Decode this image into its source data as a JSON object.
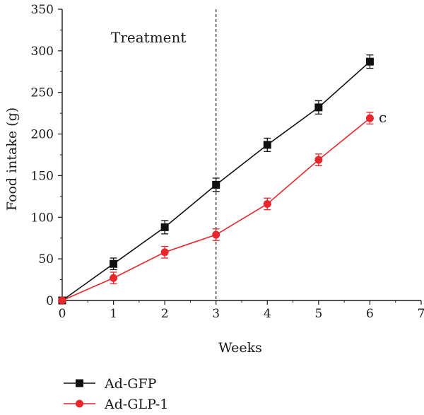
{
  "chart_data": {
    "type": "line",
    "xlabel": "Weeks",
    "ylabel": "Food intake (g)",
    "xlim": [
      0,
      7
    ],
    "ylim": [
      0,
      350
    ],
    "xticks": [
      0,
      1,
      2,
      3,
      4,
      5,
      6,
      7
    ],
    "yticks": [
      0,
      50,
      100,
      150,
      200,
      250,
      300,
      350
    ],
    "grid": false,
    "legend_position": "bottom-left",
    "annotations": [
      {
        "text": "Treatment",
        "x": 1.5,
        "y": 312
      },
      {
        "text": "c",
        "x": 6.25,
        "y": 220
      }
    ],
    "reference_lines": [
      {
        "orientation": "vertical",
        "x": 3,
        "style": "dashed"
      }
    ],
    "series": [
      {
        "name": "Ad-GFP",
        "marker": "square",
        "color": "#111111",
        "x": [
          0,
          1,
          2,
          3,
          4,
          5,
          6
        ],
        "values": [
          0,
          44,
          88,
          139,
          187,
          232,
          287
        ],
        "errors": [
          0,
          7,
          8,
          8,
          8,
          8,
          8
        ]
      },
      {
        "name": "Ad-GLP-1",
        "marker": "circle",
        "color": "#e8262b",
        "x": [
          0,
          1,
          2,
          3,
          4,
          5,
          6
        ],
        "values": [
          0,
          27,
          58,
          79,
          116,
          169,
          219
        ],
        "errors": [
          0,
          7,
          7,
          7,
          7,
          7,
          7
        ]
      }
    ]
  }
}
